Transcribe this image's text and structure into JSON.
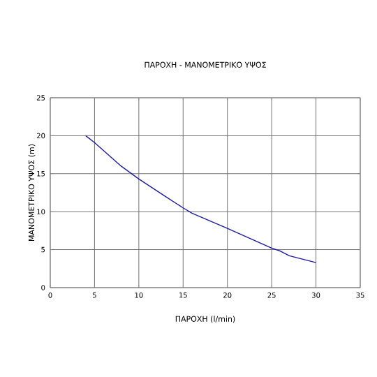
{
  "chart_data": {
    "type": "line",
    "title": "ΠΑΡΟΧΗ - ΜΑΝΟΜΕΤΡΙΚΟ ΥΨΟΣ",
    "xlabel": "ΠΑΡΟΧΗ (l/min)",
    "ylabel": "ΜΑΝΟΜΕΤΡΙΚΟ ΥΨΟΣ (m)",
    "x": [
      4,
      5,
      8,
      10,
      13,
      15,
      16,
      20,
      25,
      26,
      27,
      30
    ],
    "series": [
      {
        "color": "#1a1aa0",
        "values": [
          20,
          19.1,
          16,
          14.3,
          12,
          10.5,
          9.8,
          7.8,
          5.2,
          4.8,
          4.2,
          3.3
        ]
      }
    ],
    "xlim": [
      0,
      35
    ],
    "xticks": [
      0,
      5,
      10,
      15,
      20,
      25,
      30,
      35
    ],
    "ylim": [
      0,
      25
    ],
    "yticks": [
      0,
      5,
      10,
      15,
      20,
      25
    ],
    "grid": true,
    "marker": "none",
    "line_style": "solid"
  }
}
